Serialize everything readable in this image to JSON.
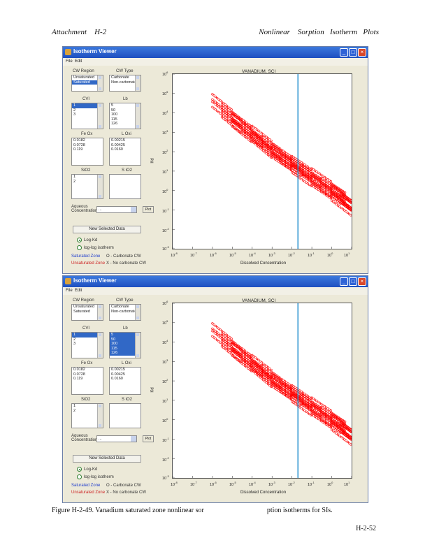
{
  "header": {
    "left": "Attachment    H-2",
    "right": "Nonlinear    Sorption   Isotherm   Plots"
  },
  "window": {
    "title": "Isotherm Viewer",
    "menu": [
      "File",
      "Edit"
    ],
    "labels": {
      "cw_region": "CW Region",
      "cw_type": "CW Type",
      "cvi": "CVI",
      "lb": "Lb",
      "fe_ox": "Fe Ox",
      "l_oxi": "L Oxi",
      "sio2": "SiO2",
      "sio2b": "S iO2",
      "aqueous_concentration": "Aqueous\nConcentration",
      "saturated_zone": "Saturated Zone",
      "unsaturated_zone": "Unsaturated Zone",
      "legend1": "O - Carbonate CW",
      "legend2": "X - No carbonate CW"
    },
    "lists": {
      "region": [
        "Unsaturated",
        "Saturated"
      ],
      "type": [
        "Carbonate",
        "Non-carbonate"
      ],
      "cvi": [
        "1",
        "2",
        "3"
      ],
      "lb": [
        "5",
        "50",
        "100",
        "115",
        "126"
      ],
      "feox": [
        "0.0182",
        "0.0728",
        "0.119"
      ],
      "loxi": [
        "0.00215",
        "0.00425",
        "0.0160"
      ],
      "sio2": [
        "1",
        "2"
      ]
    },
    "aqueous_select": "...",
    "small_button": "Plot",
    "big_button": "New Selected Data",
    "radio1": "Log-Kd",
    "radio2": "log-log isotherm",
    "plot": {
      "title": "VANADIUM, SCI",
      "xlabel": "Dissolved Concentration",
      "ylabel": "Kd",
      "xticks": [
        "10",
        "10",
        "10",
        "10",
        "10",
        "10",
        "10",
        "10",
        "10",
        "10"
      ],
      "xexp": [
        "-8",
        "-7",
        "-6",
        "-5",
        "-4",
        "-3",
        "-2",
        "-1",
        "0",
        "1"
      ],
      "yticks": [
        "10",
        "10",
        "10",
        "10",
        "10",
        "10",
        "10",
        "10",
        "10",
        "10"
      ],
      "yexp": [
        "6",
        "5",
        "4",
        "3",
        "2",
        "1",
        "0",
        "-1",
        "-2",
        "-3"
      ]
    }
  },
  "chart_data": [
    {
      "type": "scatter",
      "title": "VANADIUM, SCI",
      "xlabel": "Dissolved Concentration",
      "ylabel": "Kd",
      "xscale": "log",
      "yscale": "log",
      "xlim": [
        1e-08,
        10
      ],
      "ylim": [
        0.001,
        1000000
      ],
      "marker_color": "#ff0000",
      "vline_color": "#1c8ccc",
      "vline_x": 0.02,
      "series": [
        {
          "x": [
            1e-06,
            1e-05,
            0.0001,
            0.001,
            0.01,
            0.1,
            1,
            5
          ],
          "y": [
            20000,
            3000,
            500,
            80,
            15,
            3,
            0.6,
            0.2
          ]
        },
        {
          "x": [
            3e-06,
            3e-05,
            0.0003,
            0.003,
            0.03,
            0.3,
            3,
            10
          ],
          "y": [
            6000,
            900,
            150,
            25,
            5,
            1,
            0.2,
            0.08
          ]
        },
        {
          "x": [
            1e-05,
            0.0001,
            0.001,
            0.01,
            0.1,
            1,
            10
          ],
          "y": [
            2000,
            300,
            40,
            8,
            1.5,
            0.3,
            0.05
          ]
        }
      ]
    },
    {
      "type": "scatter",
      "title": "VANADIUM, SCI",
      "xlabel": "Dissolved Concentration",
      "ylabel": "Kd",
      "xscale": "log",
      "yscale": "log",
      "xlim": [
        1e-08,
        10
      ],
      "ylim": [
        0.001,
        1000000
      ],
      "marker_color": "#ff0000",
      "vline_color": "#1c8ccc",
      "vline_x": 0.02,
      "series": [
        {
          "x": [
            1e-06,
            1e-05,
            0.0001,
            0.001,
            0.01,
            0.1,
            1,
            5
          ],
          "y": [
            20000,
            3000,
            500,
            80,
            15,
            3,
            0.6,
            0.2
          ]
        },
        {
          "x": [
            3e-06,
            3e-05,
            0.0003,
            0.003,
            0.03,
            0.3,
            3,
            10
          ],
          "y": [
            6000,
            900,
            150,
            25,
            5,
            1,
            0.2,
            0.08
          ]
        },
        {
          "x": [
            1e-05,
            0.0001,
            0.001,
            0.01,
            0.1,
            1,
            10
          ],
          "y": [
            2000,
            300,
            40,
            8,
            1.5,
            0.3,
            0.05
          ]
        }
      ]
    }
  ],
  "caption": "Figure H-2-49. Vanadium saturated zone nonlinear sor                                    ption isotherms for SIs.",
  "page_number": "H-2-52"
}
